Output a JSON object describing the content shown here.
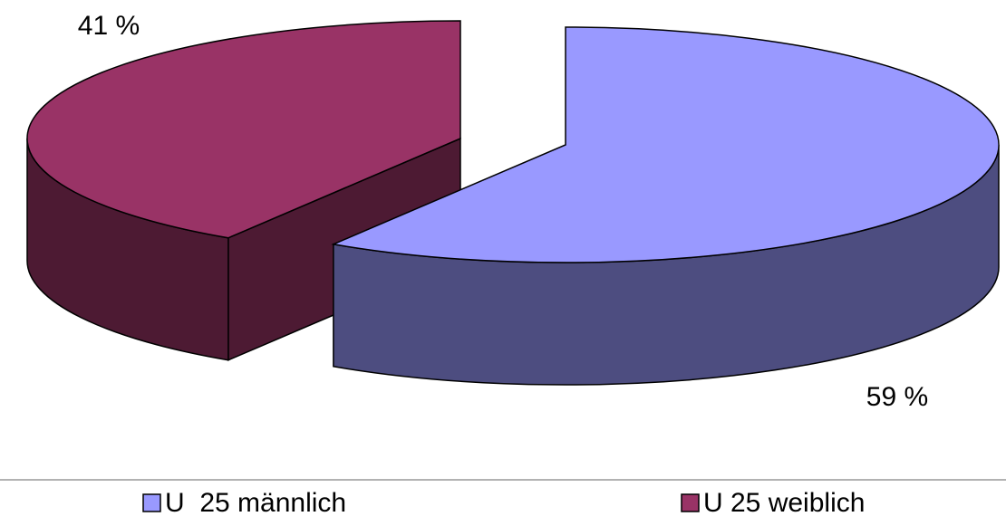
{
  "chart_data": {
    "type": "pie",
    "categories": [
      "U  25 männlich",
      "U 25 weiblich"
    ],
    "values": [
      59,
      41
    ],
    "value_labels": [
      "59 %",
      "41 %"
    ],
    "colors": [
      "#9999ff",
      "#993366"
    ],
    "legend": "bottom"
  }
}
